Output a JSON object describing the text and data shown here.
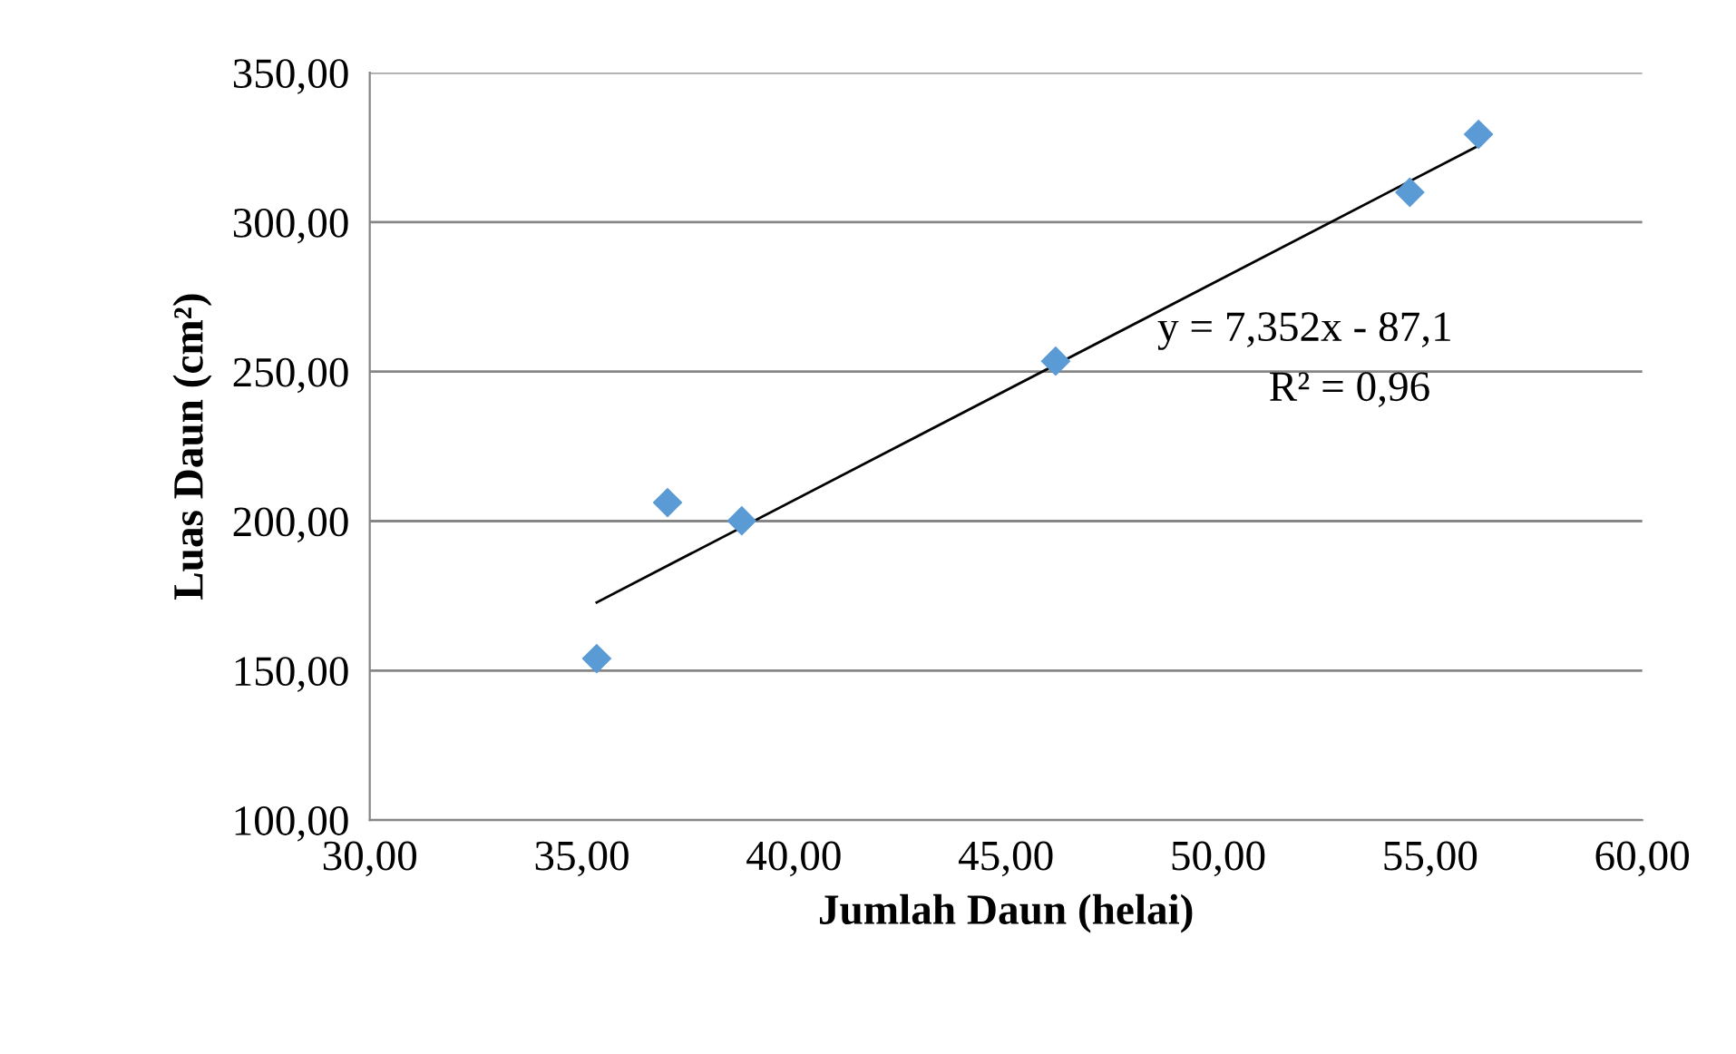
{
  "chart_data": {
    "type": "scatter",
    "xlabel": "Jumlah Daun (helai)",
    "ylabel": "Luas Daun (cm²)",
    "series": [
      {
        "color": "#5b9bd5",
        "marker": "diamond",
        "x": [
          35.35,
          37.02,
          38.77,
          46.17,
          54.52,
          56.14
        ],
        "values": [
          154.0,
          206.2,
          200.1,
          253.5,
          310.0,
          329.4
        ]
      },
      {
        "type": "line",
        "color": "#000000",
        "marker": "none",
        "line_style": "solid",
        "x": [
          35.35,
          56.14
        ],
        "values": [
          172.8,
          325.6
        ]
      }
    ],
    "annotations": [
      "y = 7,352x - 87,1",
      "R² = 0,96"
    ],
    "xlim": [
      30,
      60
    ],
    "ylim": [
      100,
      350
    ],
    "xticks": [
      {
        "value": 30,
        "label": "30,00"
      },
      {
        "value": 35,
        "label": "35,00"
      },
      {
        "value": 40,
        "label": "40,00"
      },
      {
        "value": 45,
        "label": "45,00"
      },
      {
        "value": 50,
        "label": "50,00"
      },
      {
        "value": 55,
        "label": "55,00"
      },
      {
        "value": 60,
        "label": "60,00"
      }
    ],
    "yticks": [
      {
        "value": 100,
        "label": "100,00"
      },
      {
        "value": 150,
        "label": "150,00"
      },
      {
        "value": 200,
        "label": "200,00"
      },
      {
        "value": 250,
        "label": "250,00"
      },
      {
        "value": 300,
        "label": "300,00"
      },
      {
        "value": 350,
        "label": "350,00"
      }
    ],
    "grid": "y"
  }
}
